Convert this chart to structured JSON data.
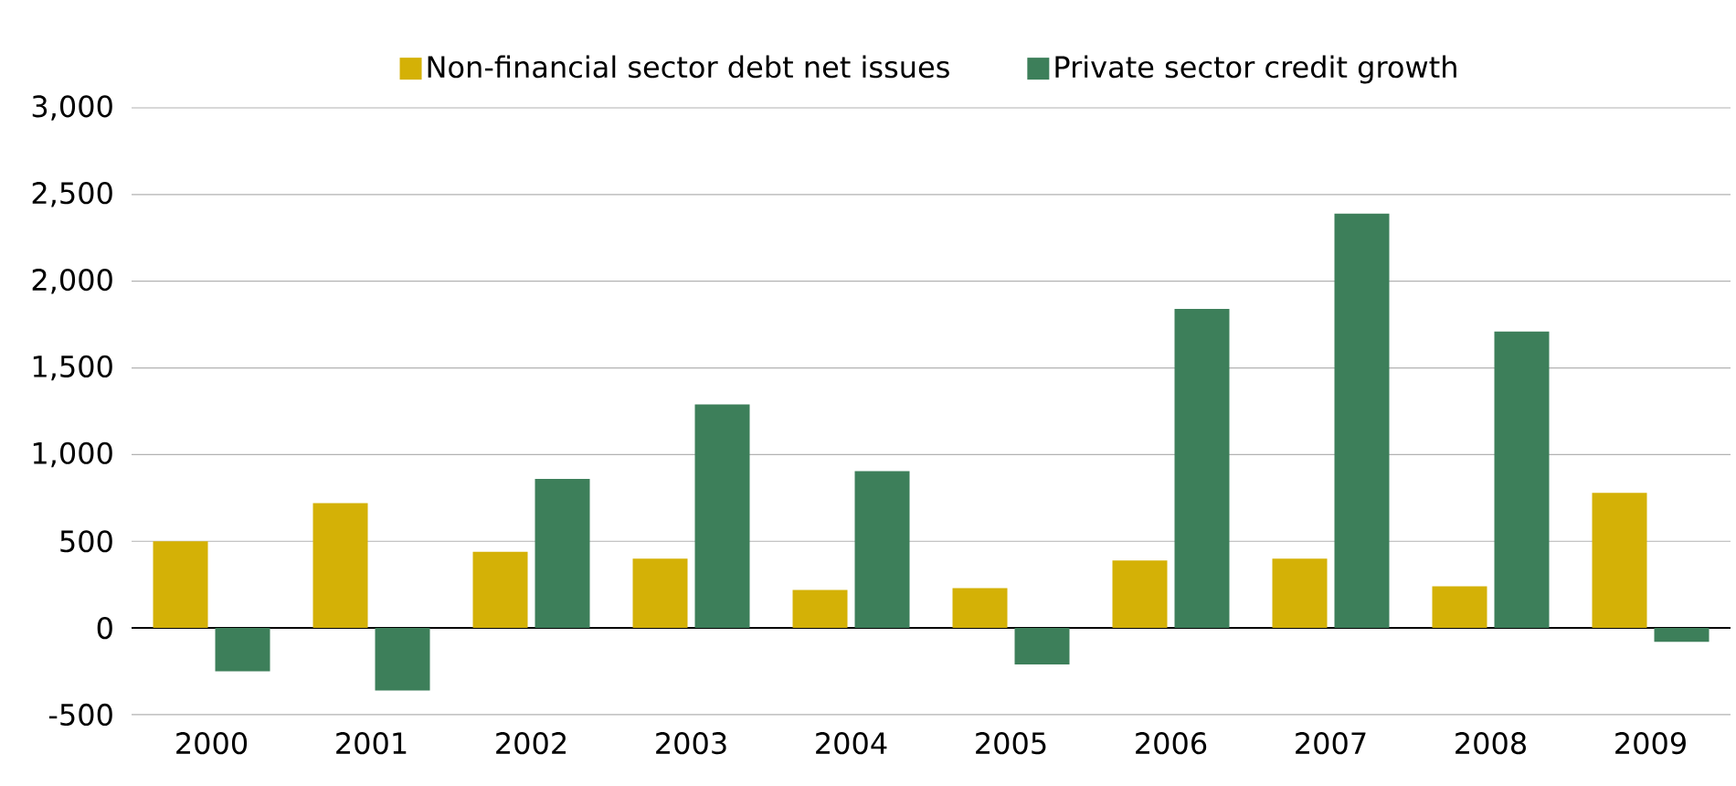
{
  "chart_data": {
    "type": "bar",
    "categories": [
      "2000",
      "2001",
      "2002",
      "2003",
      "2004",
      "2005",
      "2006",
      "2007",
      "2008",
      "2009"
    ],
    "series": [
      {
        "name": "Non-financial sector debt net issues",
        "color": "#d4b106",
        "values": [
          500,
          720,
          440,
          400,
          220,
          230,
          390,
          400,
          240,
          780
        ]
      },
      {
        "name": "Private sector credit growth",
        "color": "#3d7f5a",
        "values": [
          -250,
          -360,
          860,
          1290,
          905,
          -210,
          1840,
          2390,
          1710,
          -80
        ]
      }
    ],
    "ylim": [
      -500,
      3000
    ],
    "yticks": [
      {
        "value": -500,
        "label": "-500"
      },
      0,
      {
        "value": 500,
        "label": "500"
      },
      {
        "value": 1000,
        "label": "1,000"
      },
      {
        "value": 1500,
        "label": "1,500"
      },
      {
        "value": 2000,
        "label": "2,000"
      },
      {
        "value": 2500,
        "label": "2,500"
      },
      {
        "value": 3000,
        "label": "3,000"
      }
    ],
    "grid": "y",
    "legend": "top"
  }
}
